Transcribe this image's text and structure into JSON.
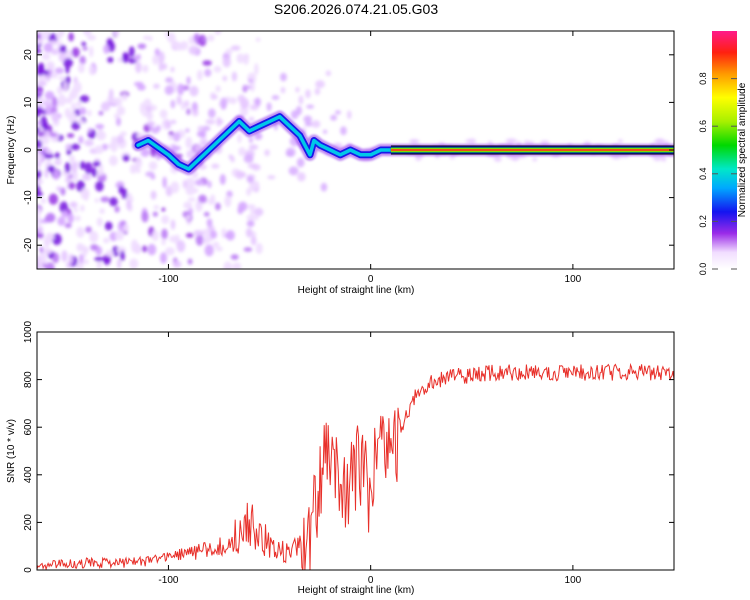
{
  "title": "S206.2026.074.21.05.G03",
  "chart_data": [
    {
      "type": "heatmap",
      "xlabel": "Height of straight line (km)",
      "ylabel": "Frequency (Hz)",
      "xlim": [
        -165,
        150
      ],
      "ylim": [
        -25,
        25
      ],
      "xticks": [
        -100,
        0,
        100
      ],
      "yticks": [
        -20,
        -10,
        0,
        10,
        20
      ],
      "grid": false,
      "ridge_x": [
        -115,
        -110,
        -100,
        -95,
        -90,
        -85,
        -80,
        -75,
        -70,
        -65,
        -60,
        -55,
        -50,
        -45,
        -40,
        -35,
        -30,
        -28,
        -25,
        -20,
        -15,
        -10,
        -5,
        0,
        5,
        10,
        50,
        100,
        150
      ],
      "ridge_f": [
        1,
        2,
        -1,
        -3,
        -4,
        -2,
        0,
        2,
        4,
        6,
        4,
        5,
        6,
        7,
        5,
        3,
        -1,
        2,
        1,
        0,
        -1,
        0,
        -1,
        -1,
        0,
        0,
        0,
        0,
        0
      ],
      "colorbar": {
        "label": "Normalized spectral amplitude",
        "ticks": [
          0.0,
          0.2,
          0.4,
          0.6,
          0.8
        ],
        "range": [
          0,
          1
        ]
      }
    },
    {
      "type": "line",
      "xlabel": "Height of straight line (km)",
      "ylabel": "SNR (10 * v/v)",
      "xlim": [
        -165,
        150
      ],
      "ylim": [
        0,
        1000
      ],
      "xticks": [
        -100,
        0,
        100
      ],
      "yticks": [
        0,
        200,
        400,
        600,
        800,
        1000
      ],
      "grid": false,
      "color": "#e8302a",
      "series": [
        {
          "name": "SNR",
          "x": [
            -165,
            -150,
            -140,
            -130,
            -120,
            -110,
            -100,
            -95,
            -90,
            -85,
            -80,
            -75,
            -70,
            -65,
            -60,
            -55,
            -50,
            -45,
            -40,
            -35,
            -30,
            -28,
            -26,
            -24,
            -22,
            -20,
            -18,
            -16,
            -14,
            -12,
            -10,
            -8,
            -6,
            -4,
            -2,
            0,
            2,
            4,
            6,
            8,
            10,
            15,
            20,
            25,
            30,
            35,
            40,
            50,
            60,
            80,
            100,
            120,
            150
          ],
          "y": [
            20,
            25,
            30,
            30,
            30,
            40,
            50,
            60,
            70,
            80,
            90,
            100,
            120,
            160,
            200,
            150,
            100,
            80,
            80,
            90,
            120,
            350,
            250,
            450,
            500,
            420,
            380,
            450,
            350,
            300,
            420,
            380,
            480,
            420,
            350,
            300,
            420,
            480,
            520,
            500,
            450,
            600,
            700,
            760,
            790,
            800,
            810,
            820,
            830,
            830,
            830,
            830,
            830
          ]
        }
      ]
    }
  ]
}
